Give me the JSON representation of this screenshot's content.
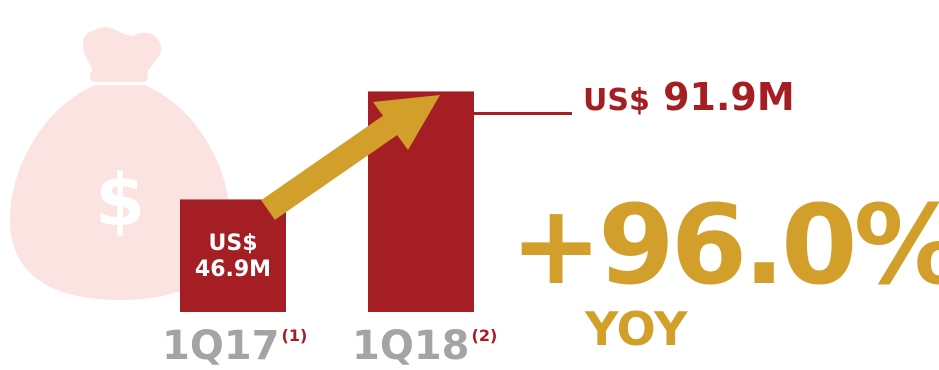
{
  "colors": {
    "bar": "#a51e23",
    "arrow": "#d39f2b",
    "label_gray": "#a4a4a4",
    "background_icon": "#fbe3e1"
  },
  "icons": {
    "background": "money-bag-icon",
    "bag_symbol": "$"
  },
  "chart_data": {
    "type": "bar",
    "categories": [
      "1Q17",
      "1Q18"
    ],
    "category_notes": [
      "(1)",
      "(2)"
    ],
    "values": [
      46.9,
      91.9
    ],
    "unit": "US$ M",
    "data_labels": {
      "first_currency": "US$",
      "first_amount": "46.9M",
      "second_currency": "US$",
      "second_amount": "91.9M"
    },
    "annotation": {
      "change": "+96.0%",
      "period": "YOY"
    },
    "ylim": [
      0,
      100
    ],
    "grid": false,
    "legend": false
  }
}
